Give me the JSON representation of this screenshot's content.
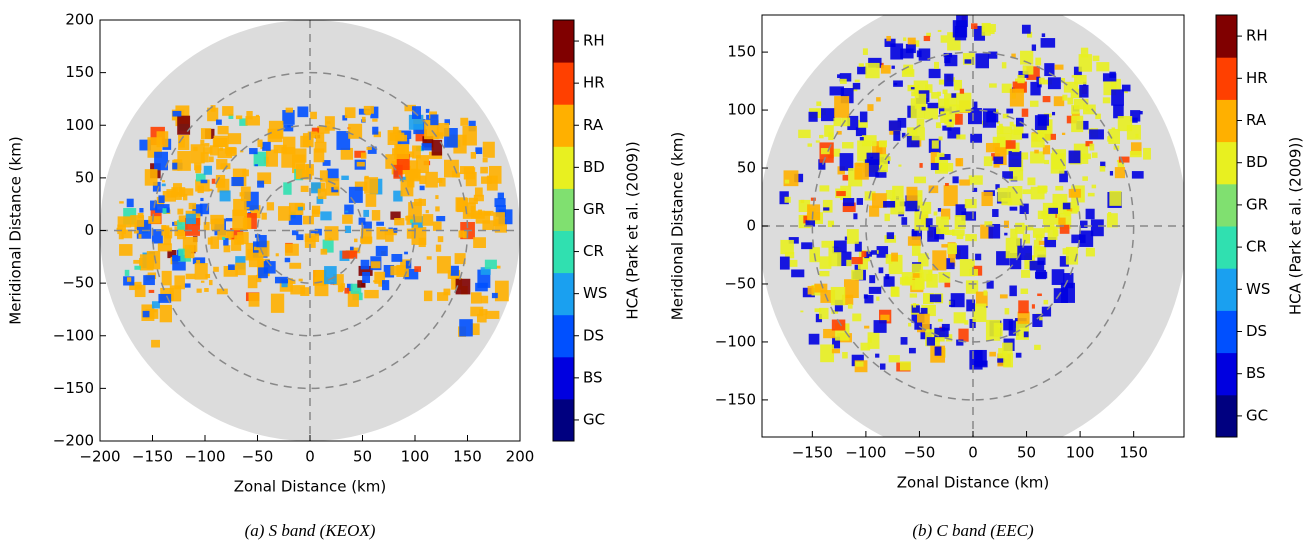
{
  "chart_data": [
    {
      "type": "heatmap",
      "xlabel": "Zonal Distance (km)",
      "ylabel": "Meridional Distance (km)",
      "xlim": [
        -200,
        200
      ],
      "ylim": [
        -200,
        200
      ],
      "xticks": [
        {
          "value": -200,
          "label": "−200"
        },
        {
          "value": -150,
          "label": "−150"
        },
        {
          "value": -100,
          "label": "−100"
        },
        {
          "value": -50,
          "label": "−50"
        },
        0,
        50,
        100,
        150,
        200
      ],
      "yticks": [
        {
          "value": -200,
          "label": "−200"
        },
        {
          "value": -150,
          "label": "−150"
        },
        {
          "value": -100,
          "label": "−100"
        },
        {
          "value": -50,
          "label": "−50"
        },
        0,
        50,
        100,
        150,
        200
      ],
      "colorbar": {
        "label": "HCA (Park et al. (2009))",
        "categories": [
          "GC",
          "BS",
          "DS",
          "WS",
          "CR",
          "GR",
          "BD",
          "RA",
          "HR",
          "RH"
        ],
        "colors": [
          "#000080",
          "#0000e0",
          "#0050ff",
          "#1aa0f0",
          "#30e0b0",
          "#80e070",
          "#e8f020",
          "#ffb000",
          "#ff4000",
          "#800000"
        ]
      },
      "caption": "(a) S band (KEOX)"
    },
    {
      "type": "heatmap",
      "xlabel": "Zonal Distance (km)",
      "ylabel": "Meridional Distance (km)",
      "xlim": [
        -197,
        197
      ],
      "ylim": [
        -182,
        182
      ],
      "xticks": [
        {
          "value": -150,
          "label": "−150"
        },
        {
          "value": -100,
          "label": "−100"
        },
        {
          "value": -50,
          "label": "−50"
        },
        0,
        50,
        100,
        150
      ],
      "yticks": [
        {
          "value": -150,
          "label": "−150"
        },
        {
          "value": -100,
          "label": "−100"
        },
        {
          "value": -50,
          "label": "−50"
        },
        0,
        50,
        100,
        150
      ],
      "colorbar": {
        "label": "HCA (Park et al. (2009))",
        "categories": [
          "GC",
          "BS",
          "DS",
          "WS",
          "CR",
          "GR",
          "BD",
          "RA",
          "HR",
          "RH"
        ],
        "colors": [
          "#000080",
          "#0000e0",
          "#0050ff",
          "#1aa0f0",
          "#30e0b0",
          "#80e070",
          "#e8f020",
          "#ffb000",
          "#ff4000",
          "#800000"
        ]
      },
      "caption": "(b) C band (EEC)"
    }
  ]
}
